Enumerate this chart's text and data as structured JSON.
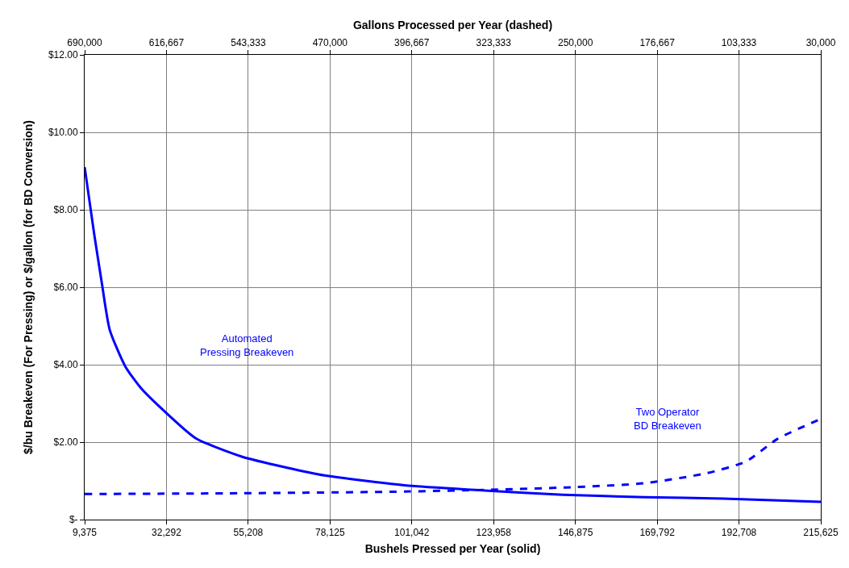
{
  "chart_data": {
    "type": "line",
    "xlabel": "Bushels Pressed per Year (solid)",
    "x2label": "Gallons Processed per Year (dashed)",
    "ylabel": "$/bu Breakeven (For Pressing) or $/gallon (for BD Conversion)",
    "series": [
      {
        "color": "#0000ff",
        "line_style": "solid",
        "x": [
          9375,
          12000,
          14200,
          16400,
          20800,
          25100,
          31700,
          40500,
          53600,
          65600,
          76600,
          98500,
          121500,
          143400,
          166400,
          188300,
          215625
        ],
        "values": [
          9.1,
          7.4,
          6.1,
          4.9,
          3.95,
          3.4,
          2.8,
          2.1,
          1.62,
          1.35,
          1.14,
          0.89,
          0.75,
          0.64,
          0.58,
          0.54,
          0.46
        ]
      },
      {
        "color": "#0000ff",
        "line_style": "dashed",
        "axis": "x2",
        "x": [
          690000,
          552000,
          412000,
          328000,
          258000,
          188000,
          132000,
          97000,
          69000,
          30000
        ],
        "values": [
          0.66,
          0.68,
          0.72,
          0.77,
          0.83,
          0.94,
          1.2,
          1.5,
          2.08,
          2.6
        ]
      }
    ],
    "xlim": [
      9375,
      215625
    ],
    "xticks": [
      {
        "value": 9375,
        "label": "9,375"
      },
      {
        "value": 32291.67,
        "label": "32,292"
      },
      {
        "value": 55208.33,
        "label": "55,208"
      },
      {
        "value": 78125,
        "label": "78,125"
      },
      {
        "value": 101041.67,
        "label": "101,042"
      },
      {
        "value": 123958.33,
        "label": "123,958"
      },
      {
        "value": 146875,
        "label": "146,875"
      },
      {
        "value": 169791.67,
        "label": "169,792"
      },
      {
        "value": 192708.33,
        "label": "192,708"
      },
      {
        "value": 215625,
        "label": "215,625"
      }
    ],
    "x2lim": [
      690000,
      30000
    ],
    "x2ticks": [
      {
        "value": 690000,
        "label": "690,000"
      },
      {
        "value": 616666.67,
        "label": "616,667"
      },
      {
        "value": 543333.33,
        "label": "543,333"
      },
      {
        "value": 470000,
        "label": "470,000"
      },
      {
        "value": 396666.67,
        "label": "396,667"
      },
      {
        "value": 323333.33,
        "label": "323,333"
      },
      {
        "value": 250000,
        "label": "250,000"
      },
      {
        "value": 176666.67,
        "label": "176,667"
      },
      {
        "value": 103333.33,
        "label": "103,333"
      },
      {
        "value": 30000,
        "label": "30,000"
      }
    ],
    "ylim": [
      0,
      12
    ],
    "yticks": [
      {
        "value": 0,
        "label": "$-"
      },
      {
        "value": 2,
        "label": "$2.00"
      },
      {
        "value": 4,
        "label": "$4.00"
      },
      {
        "value": 6,
        "label": "$6.00"
      },
      {
        "value": 8,
        "label": "$8.00"
      },
      {
        "value": 10,
        "label": "$10.00"
      },
      {
        "value": 12,
        "label": "$12.00"
      }
    ],
    "grid": true,
    "annotations": [
      "Automated\nPressing Breakeven",
      "Two Operator\nBD Breakeven"
    ]
  }
}
